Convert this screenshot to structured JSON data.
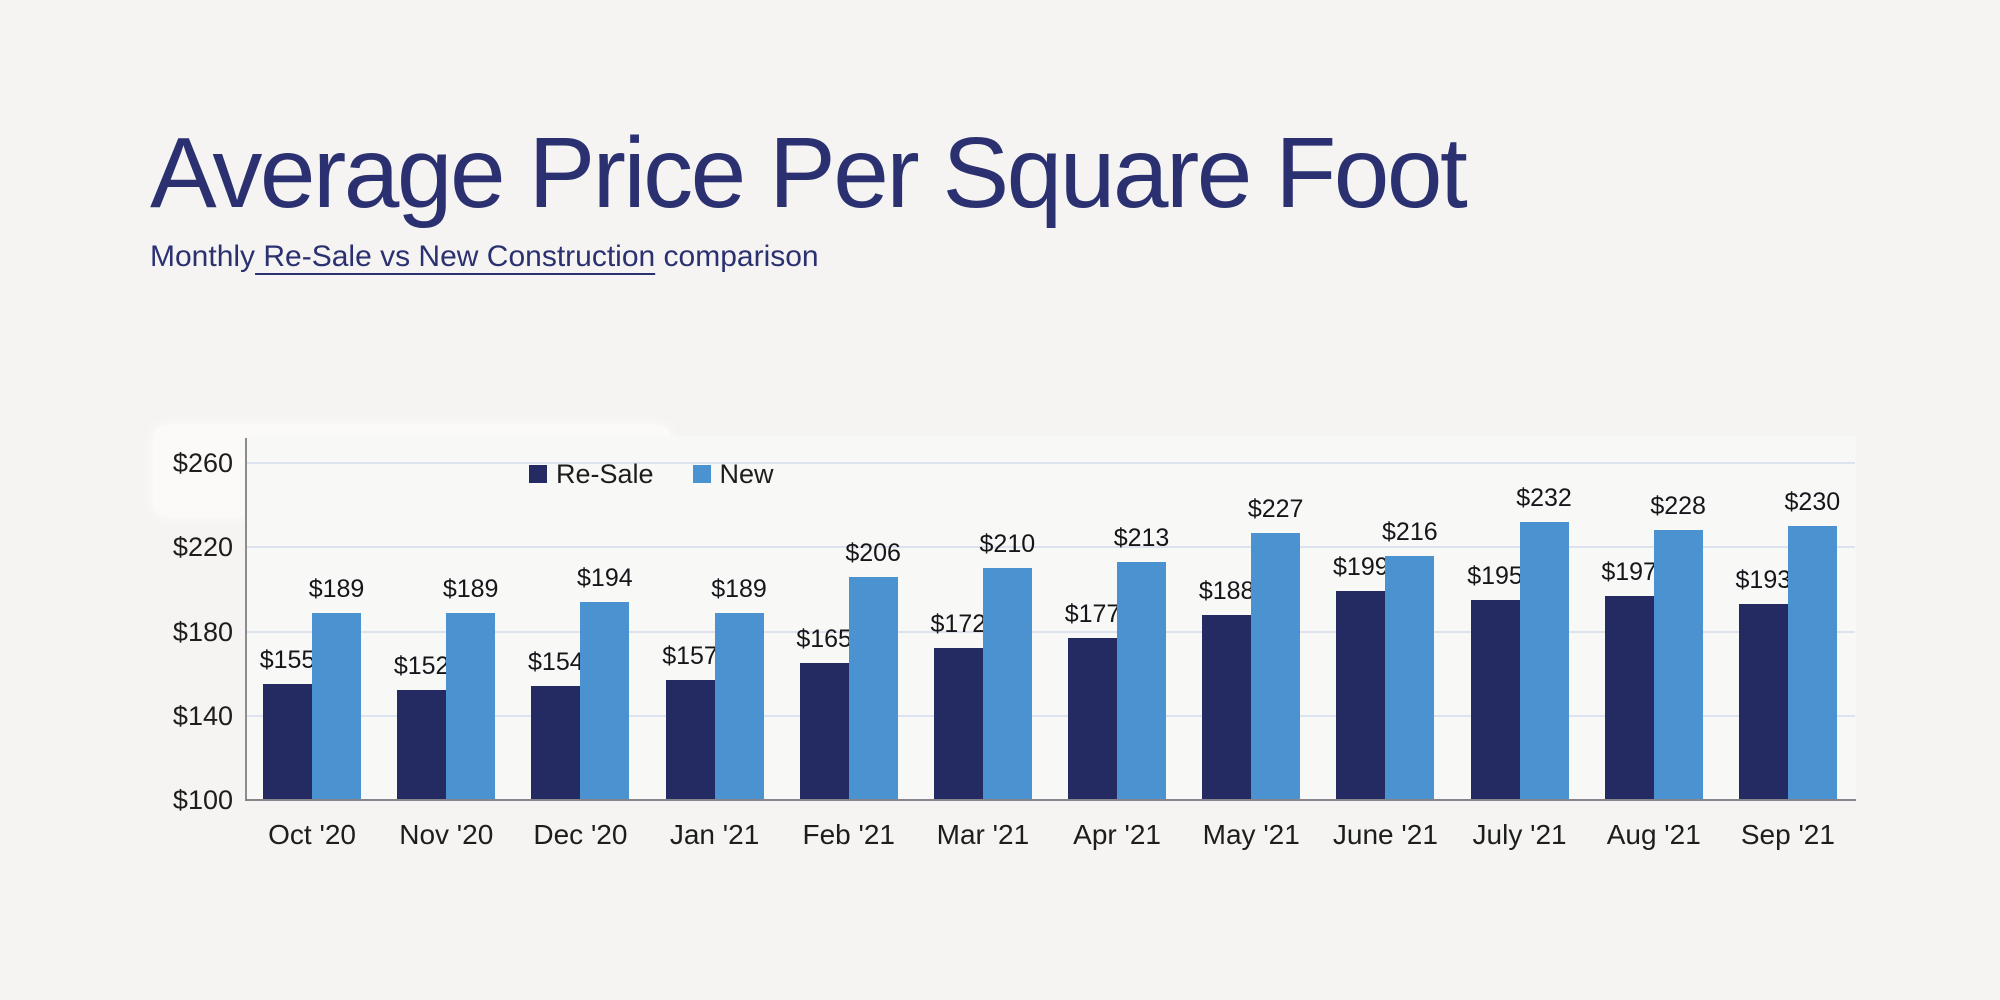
{
  "header": {
    "title": "Average Price Per Square Foot",
    "subtitle_prefix": "Monthly",
    "subtitle_link": " Re-Sale vs New Construction",
    "subtitle_suffix": " comparison",
    "title_color": "#2b3170"
  },
  "chart_data": {
    "type": "bar",
    "title": "Average Price Per Square Foot",
    "subtitle": "Monthly Re-Sale vs New Construction comparison",
    "categories": [
      "Oct '20",
      "Nov '20",
      "Dec '20",
      "Jan '21",
      "Feb '21",
      "Mar '21",
      "Apr '21",
      "May '21",
      "June '21",
      "July '21",
      "Aug '21",
      "Sep '21"
    ],
    "series": [
      {
        "name": "Re-Sale",
        "color": "#242b63",
        "values": [
          155,
          152,
          154,
          157,
          165,
          172,
          177,
          188,
          199,
          195,
          197,
          193
        ]
      },
      {
        "name": "New",
        "color": "#4b92d0",
        "values": [
          189,
          189,
          194,
          189,
          206,
          210,
          213,
          227,
          216,
          232,
          228,
          230
        ]
      }
    ],
    "value_prefix": "$",
    "y_ticks": [
      260,
      220,
      180,
      140,
      100
    ],
    "ylim": [
      100,
      260
    ],
    "grid": true,
    "legend_position": "top-left-of-plot",
    "colors": {
      "page_background": "#f5f4f2",
      "plot_background": "#f8f8f7",
      "gridline": "#dde2ef",
      "axis_line": "#85858b",
      "label_text": "#1d1d1b"
    }
  }
}
